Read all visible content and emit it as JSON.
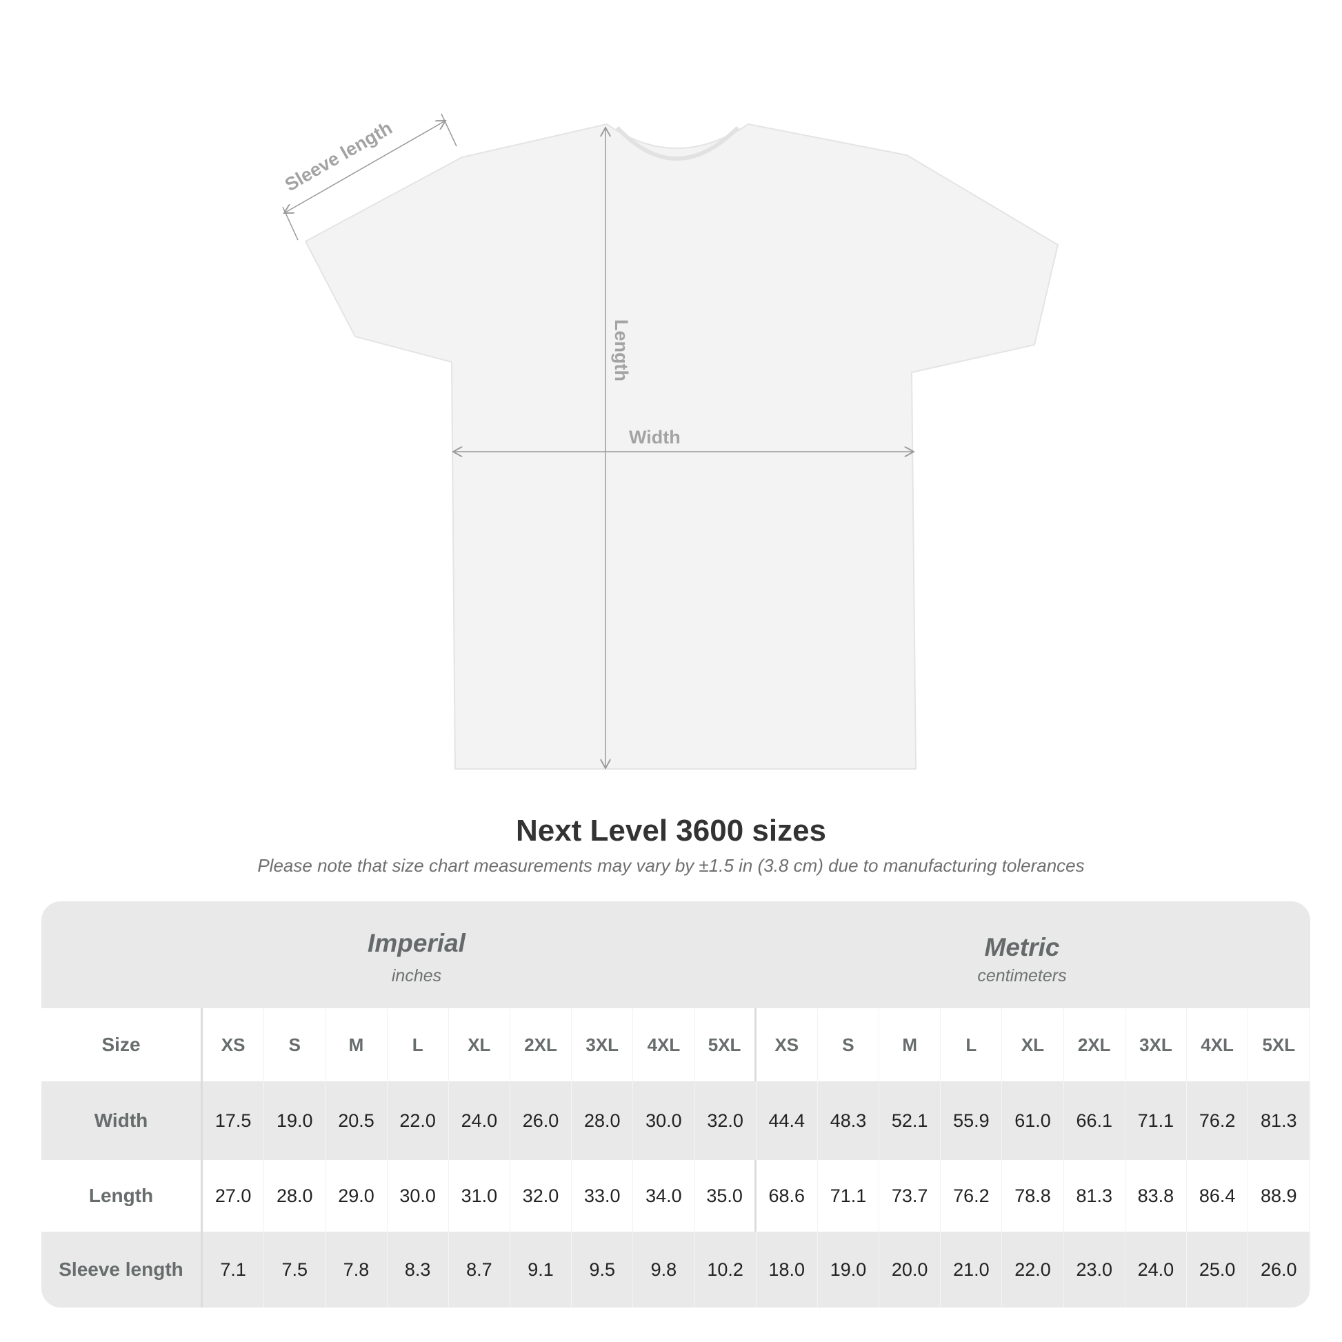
{
  "diagram": {
    "sleeve_label": "Sleeve length",
    "length_label": "Length",
    "width_label": "Width",
    "shirt_color": "#f3f3f3",
    "annotation_color": "#a3a3a3"
  },
  "title": "Next Level 3600 sizes",
  "note": "Please note that size chart measurements may vary by ±1.5 in (3.8 cm) due to manufacturing tolerances",
  "table": {
    "imperial": {
      "name": "Imperial",
      "unit": "inches"
    },
    "metric": {
      "name": "Metric",
      "unit": "centimeters"
    },
    "size_label": "Size",
    "sizes": [
      "XS",
      "S",
      "M",
      "L",
      "XL",
      "2XL",
      "3XL",
      "4XL",
      "5XL"
    ],
    "rows": [
      {
        "label": "Width",
        "imperial": [
          "17.5",
          "19.0",
          "20.5",
          "22.0",
          "24.0",
          "26.0",
          "28.0",
          "30.0",
          "32.0"
        ],
        "metric": [
          "44.4",
          "48.3",
          "52.1",
          "55.9",
          "61.0",
          "66.1",
          "71.1",
          "76.2",
          "81.3"
        ]
      },
      {
        "label": "Length",
        "imperial": [
          "27.0",
          "28.0",
          "29.0",
          "30.0",
          "31.0",
          "32.0",
          "33.0",
          "34.0",
          "35.0"
        ],
        "metric": [
          "68.6",
          "71.1",
          "73.7",
          "76.2",
          "78.8",
          "81.3",
          "83.8",
          "86.4",
          "88.9"
        ]
      },
      {
        "label": "Sleeve length",
        "imperial": [
          "7.1",
          "7.5",
          "7.8",
          "8.3",
          "8.7",
          "9.1",
          "9.5",
          "9.8",
          "10.2"
        ],
        "metric": [
          "18.0",
          "19.0",
          "20.0",
          "21.0",
          "22.0",
          "23.0",
          "24.0",
          "25.0",
          "26.0"
        ]
      }
    ]
  }
}
